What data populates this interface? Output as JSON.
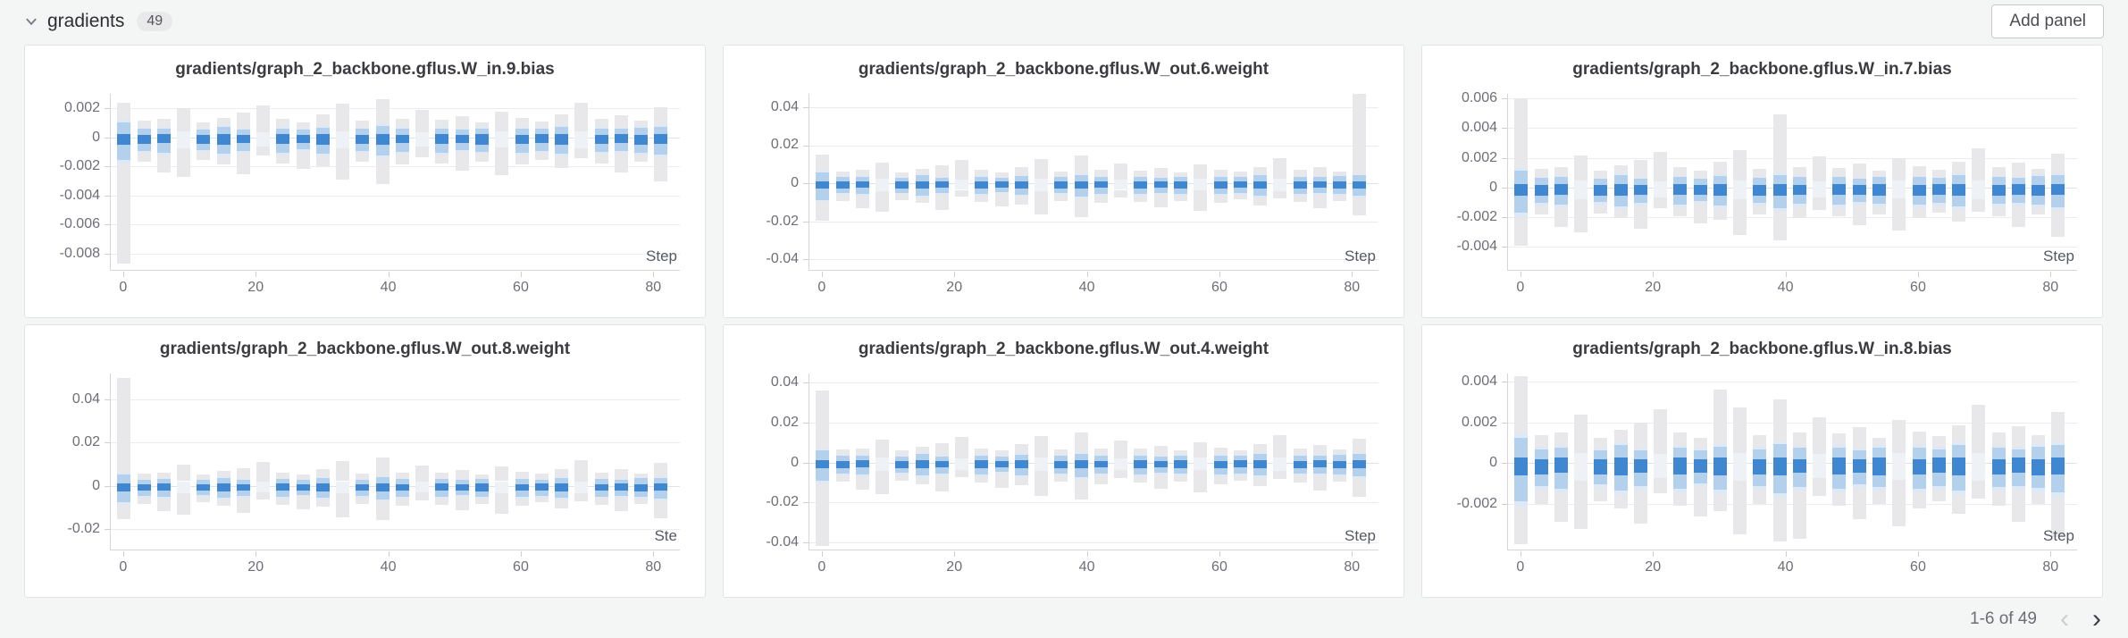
{
  "header": {
    "section_label": "gradients",
    "count": "49",
    "add_panel_label": "Add panel"
  },
  "footer": {
    "range_label": "1-6 of 49"
  },
  "colors": {
    "dark_blue": "#3f87d0",
    "light_blue": "#b3d0ec",
    "halo_blue": "#dde9f6",
    "sparse_mid": "#eef1f5",
    "gray_bar": "#e8e8ea",
    "grid": "#ececee",
    "grid_zero": "#e2e2e4",
    "axis": "#d6d6d9"
  },
  "distribution_columns_normalized": [
    [
      -3.4,
      2.6,
      -1.5,
      1.0,
      -0.5,
      0.2
    ],
    [
      -1.6,
      1.1,
      -0.9,
      0.55,
      -0.45,
      0.15
    ],
    [
      -2.3,
      1.2,
      -1.0,
      0.6,
      -0.4,
      0.2
    ],
    [
      -2.6,
      1.9,
      -0.7,
      0.4,
      0,
      0
    ],
    [
      -1.5,
      1.0,
      -0.85,
      0.5,
      -0.45,
      0.15
    ],
    [
      -1.8,
      1.3,
      -1.1,
      0.7,
      -0.5,
      0.2
    ],
    [
      -2.4,
      1.6,
      -0.9,
      0.5,
      -0.4,
      0.15
    ],
    [
      -1.2,
      2.1,
      -0.6,
      0.35,
      0,
      0
    ],
    [
      -1.7,
      1.2,
      -1.0,
      0.6,
      -0.45,
      0.2
    ],
    [
      -2.1,
      1.0,
      -0.8,
      0.5,
      -0.4,
      0.15
    ],
    [
      -1.9,
      1.5,
      -1.05,
      0.65,
      -0.5,
      0.2
    ],
    [
      -2.8,
      2.2,
      -0.7,
      0.4,
      0,
      0
    ],
    [
      -1.6,
      1.1,
      -0.9,
      0.55,
      -0.45,
      0.15
    ],
    [
      -3.1,
      2.5,
      -1.2,
      0.75,
      -0.5,
      0.2
    ],
    [
      -1.8,
      1.2,
      -0.95,
      0.6,
      -0.4,
      0.15
    ],
    [
      -1.3,
      1.8,
      -0.6,
      0.35,
      0,
      0
    ],
    [
      -1.7,
      1.15,
      -1.0,
      0.6,
      -0.45,
      0.2
    ],
    [
      -2.2,
      1.4,
      -0.85,
      0.5,
      -0.4,
      0.15
    ],
    [
      -1.6,
      1.0,
      -0.95,
      0.6,
      -0.5,
      0.2
    ],
    [
      -2.5,
      1.7,
      -0.65,
      0.4,
      0,
      0
    ],
    [
      -1.8,
      1.25,
      -1.0,
      0.6,
      -0.45,
      0.15
    ],
    [
      -1.5,
      1.05,
      -0.9,
      0.55,
      -0.4,
      0.2
    ],
    [
      -2.0,
      1.5,
      -1.1,
      0.7,
      -0.5,
      0.2
    ],
    [
      -1.4,
      2.3,
      -0.7,
      0.4,
      0,
      0
    ],
    [
      -1.7,
      1.2,
      -0.95,
      0.6,
      -0.45,
      0.15
    ],
    [
      -2.3,
      1.45,
      -0.9,
      0.55,
      -0.4,
      0.2
    ],
    [
      -1.6,
      1.1,
      -1.0,
      0.65,
      -0.5,
      0.15
    ],
    [
      -2.9,
      2.0,
      -1.15,
      0.7,
      -0.45,
      0.2
    ]
  ],
  "chart_data": [
    {
      "type": "heatmap",
      "subtype": "gradient-histogram-over-steps",
      "title": "gradients/graph_2_backbone.gflus.W_in.9.bias",
      "xlabel": "Step",
      "xticks": [
        0,
        20,
        40,
        60,
        80
      ],
      "xlim": [
        -2,
        84
      ],
      "steps": [
        0,
        3,
        6,
        9,
        12,
        15,
        18,
        21,
        24,
        27,
        30,
        33,
        36,
        39,
        42,
        45,
        48,
        51,
        54,
        57,
        60,
        63,
        66,
        69,
        72,
        75,
        78,
        81
      ],
      "yticks": [
        0.002,
        0,
        -0.002,
        -0.004,
        -0.006,
        -0.008
      ],
      "ylim": [
        -0.0092,
        0.003
      ],
      "scale": 0.00105,
      "center_band": -0.0003,
      "spikes": [
        {
          "i": 0,
          "lo": -8.3,
          "hi": 2.3
        }
      ]
    },
    {
      "type": "heatmap",
      "subtype": "gradient-histogram-over-steps",
      "title": "gradients/graph_2_backbone.gflus.W_out.6.weight",
      "xlabel": "Step",
      "xticks": [
        0,
        20,
        40,
        60,
        80
      ],
      "xlim": [
        -2,
        84
      ],
      "steps": [
        0,
        3,
        6,
        9,
        12,
        15,
        18,
        21,
        24,
        27,
        30,
        33,
        36,
        39,
        42,
        45,
        48,
        51,
        54,
        57,
        60,
        63,
        66,
        69,
        72,
        75,
        78,
        81
      ],
      "yticks": [
        0.04,
        0.02,
        0,
        -0.02,
        -0.04
      ],
      "ylim": [
        -0.046,
        0.047
      ],
      "scale": 0.0058,
      "center_band": -0.0015,
      "spikes": [
        {
          "i": 27,
          "hi": 8.2
        }
      ]
    },
    {
      "type": "heatmap",
      "subtype": "gradient-histogram-over-steps",
      "title": "gradients/graph_2_backbone.gflus.W_in.7.bias",
      "xlabel": "Step",
      "xticks": [
        0,
        20,
        40,
        60,
        80
      ],
      "xlim": [
        -2,
        84
      ],
      "steps": [
        0,
        3,
        6,
        9,
        12,
        15,
        18,
        21,
        24,
        27,
        30,
        33,
        36,
        39,
        42,
        45,
        48,
        51,
        54,
        57,
        60,
        63,
        66,
        69,
        72,
        75,
        78,
        81
      ],
      "yticks": [
        0.006,
        0.004,
        0.002,
        0,
        -0.002,
        -0.004
      ],
      "ylim": [
        -0.0056,
        0.0063
      ],
      "scale": 0.00115,
      "center_band": -0.0003,
      "spikes": [
        {
          "i": 0,
          "hi": 5.2
        },
        {
          "i": 13,
          "hi": 4.3
        }
      ]
    },
    {
      "type": "heatmap",
      "subtype": "gradient-histogram-over-steps",
      "title": "gradients/graph_2_backbone.gflus.W_out.8.weight",
      "xlabel": "Ste",
      "xticks": [
        0,
        20,
        40,
        60,
        80
      ],
      "xlim": [
        -2,
        84
      ],
      "steps": [
        0,
        3,
        6,
        9,
        12,
        15,
        18,
        21,
        24,
        27,
        30,
        33,
        36,
        39,
        42,
        45,
        48,
        51,
        54,
        57,
        60,
        63,
        66,
        69,
        72,
        75,
        78,
        81
      ],
      "yticks": [
        0.04,
        0.02,
        0,
        -0.02
      ],
      "ylim": [
        -0.03,
        0.052
      ],
      "scale": 0.0052,
      "center_band": -0.0015,
      "spikes": [
        {
          "i": 0,
          "lo": -3.0,
          "hi": 9.6
        }
      ]
    },
    {
      "type": "heatmap",
      "subtype": "gradient-histogram-over-steps",
      "title": "gradients/graph_2_backbone.gflus.W_out.4.weight",
      "xlabel": "Step",
      "xticks": [
        0,
        20,
        40,
        60,
        80
      ],
      "xlim": [
        -2,
        84
      ],
      "steps": [
        0,
        3,
        6,
        9,
        12,
        15,
        18,
        21,
        24,
        27,
        30,
        33,
        36,
        39,
        42,
        45,
        48,
        51,
        54,
        57,
        60,
        63,
        66,
        69,
        72,
        75,
        78,
        81
      ],
      "yticks": [
        0.04,
        0.02,
        0,
        -0.02,
        -0.04
      ],
      "ylim": [
        -0.044,
        0.0445
      ],
      "scale": 0.006,
      "center_band": -0.0015,
      "spikes": [
        {
          "i": 0,
          "lo": -7.0,
          "hi": 6.0
        }
      ]
    },
    {
      "type": "heatmap",
      "subtype": "gradient-histogram-over-steps",
      "title": "gradients/graph_2_backbone.gflus.W_in.8.bias",
      "xlabel": "Step",
      "xticks": [
        0,
        20,
        40,
        60,
        80
      ],
      "xlim": [
        -2,
        84
      ],
      "steps": [
        0,
        3,
        6,
        9,
        12,
        15,
        18,
        21,
        24,
        27,
        30,
        33,
        36,
        39,
        42,
        45,
        48,
        51,
        54,
        57,
        60,
        63,
        66,
        69,
        72,
        75,
        78,
        81
      ],
      "yticks": [
        0.004,
        0.002,
        0,
        -0.002
      ],
      "ylim": [
        -0.0043,
        0.0044
      ],
      "scale": 0.00125,
      "center_band": -0.0003,
      "spikes": [
        {
          "i": 0,
          "lo": -3.2,
          "hi": 3.4
        },
        {
          "i": 10,
          "hi": 2.9
        },
        {
          "i": 14,
          "lo": -3.0
        }
      ]
    }
  ]
}
